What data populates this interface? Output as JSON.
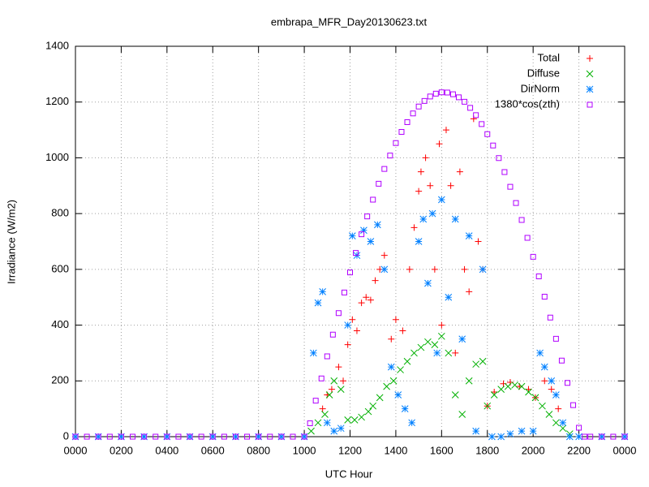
{
  "chart_data": {
    "type": "scatter",
    "title": "embrapa_MFR_Day20130623.txt",
    "xlabel": "UTC Hour",
    "ylabel": "Irradiance (W/m2)",
    "xlim": [
      0,
      24
    ],
    "ylim": [
      0,
      1400
    ],
    "xticks": [
      {
        "value": 0,
        "label": "0000"
      },
      {
        "value": 2,
        "label": "0200"
      },
      {
        "value": 4,
        "label": "0400"
      },
      {
        "value": 6,
        "label": "0600"
      },
      {
        "value": 8,
        "label": "0800"
      },
      {
        "value": 10,
        "label": "1000"
      },
      {
        "value": 12,
        "label": "1200"
      },
      {
        "value": 14,
        "label": "1400"
      },
      {
        "value": 16,
        "label": "1600"
      },
      {
        "value": 18,
        "label": "1800"
      },
      {
        "value": 20,
        "label": "2000"
      },
      {
        "value": 22,
        "label": "2200"
      },
      {
        "value": 24,
        "label": "0000"
      }
    ],
    "yticks": [
      0,
      200,
      400,
      600,
      800,
      1000,
      1200,
      1400
    ],
    "grid": true,
    "legend": "top-right",
    "series": [
      {
        "name": "Total",
        "color": "#ff0000",
        "marker": "plus",
        "x": [
          10.8,
          11.0,
          11.2,
          11.5,
          11.7,
          11.9,
          12.1,
          12.3,
          12.5,
          12.7,
          12.9,
          13.1,
          13.3,
          13.5,
          13.8,
          14.0,
          14.3,
          14.6,
          14.8,
          15.0,
          15.1,
          15.3,
          15.5,
          15.7,
          15.9,
          16.0,
          16.2,
          16.4,
          16.6,
          16.8,
          17.0,
          17.2,
          17.4,
          17.6,
          17.8,
          18.0,
          18.3,
          18.7,
          19.0,
          19.4,
          19.8,
          20.1,
          20.5,
          20.8,
          21.1
        ],
        "values": [
          100,
          150,
          170,
          250,
          200,
          330,
          420,
          380,
          480,
          500,
          490,
          560,
          600,
          650,
          350,
          420,
          380,
          600,
          750,
          880,
          950,
          1000,
          900,
          600,
          1050,
          400,
          1100,
          900,
          300,
          950,
          600,
          520,
          1140,
          700,
          600,
          110,
          160,
          190,
          195,
          180,
          170,
          140,
          200,
          170,
          100
        ]
      },
      {
        "name": "Diffuse",
        "color": "#00b000",
        "marker": "cross",
        "x": [
          10.3,
          10.6,
          10.9,
          11.1,
          11.3,
          11.6,
          11.9,
          12.2,
          12.5,
          12.8,
          13.0,
          13.3,
          13.6,
          13.9,
          14.2,
          14.5,
          14.8,
          15.1,
          15.4,
          15.7,
          16.0,
          16.3,
          16.6,
          16.9,
          17.2,
          17.5,
          17.8,
          18.0,
          18.3,
          18.6,
          18.9,
          19.2,
          19.5,
          19.8,
          20.1,
          20.4,
          20.7,
          21.0,
          21.3,
          21.6
        ],
        "values": [
          20,
          50,
          80,
          150,
          200,
          170,
          60,
          60,
          70,
          90,
          110,
          140,
          180,
          200,
          240,
          270,
          300,
          320,
          340,
          330,
          360,
          300,
          150,
          80,
          200,
          260,
          270,
          110,
          150,
          170,
          180,
          185,
          180,
          160,
          140,
          110,
          80,
          50,
          30,
          10
        ]
      },
      {
        "name": "DirNorm",
        "color": "#0080ff",
        "marker": "star",
        "x": [
          0,
          1,
          2,
          3,
          4,
          5,
          6,
          7,
          8,
          9,
          10,
          10.4,
          10.6,
          10.8,
          11.0,
          11.3,
          11.6,
          11.9,
          12.1,
          12.3,
          12.6,
          12.9,
          13.2,
          13.5,
          13.8,
          14.1,
          14.4,
          14.7,
          15.0,
          15.2,
          15.4,
          15.6,
          15.8,
          16.0,
          16.3,
          16.6,
          16.9,
          17.2,
          17.5,
          17.8,
          18.2,
          18.6,
          19.0,
          19.5,
          20.0,
          20.3,
          20.5,
          20.8,
          21.0,
          21.3,
          21.6,
          22,
          23,
          24
        ],
        "values": [
          0,
          0,
          0,
          0,
          0,
          0,
          0,
          0,
          0,
          0,
          0,
          300,
          480,
          520,
          50,
          20,
          30,
          400,
          720,
          650,
          740,
          700,
          760,
          600,
          250,
          150,
          100,
          50,
          700,
          780,
          550,
          800,
          300,
          850,
          500,
          780,
          350,
          720,
          20,
          600,
          0,
          0,
          10,
          20,
          20,
          300,
          250,
          200,
          150,
          50,
          0,
          0,
          0,
          0
        ]
      },
      {
        "name": "1380*cos(zth)",
        "color": "#b000ff",
        "marker": "square",
        "x": [
          0,
          0.5,
          1,
          1.5,
          2,
          2.5,
          3,
          3.5,
          4,
          4.5,
          5,
          5.5,
          6,
          6.5,
          7,
          7.5,
          8,
          8.5,
          9,
          9.5,
          10,
          10.25,
          10.5,
          10.75,
          11,
          11.25,
          11.5,
          11.75,
          12,
          12.25,
          12.5,
          12.75,
          13,
          13.25,
          13.5,
          13.75,
          14,
          14.25,
          14.5,
          14.75,
          15,
          15.25,
          15.5,
          15.75,
          16,
          16.25,
          16.5,
          16.75,
          17,
          17.25,
          17.5,
          17.75,
          18,
          18.25,
          18.5,
          18.75,
          19,
          19.25,
          19.5,
          19.75,
          20,
          20.25,
          20.5,
          20.75,
          21,
          21.25,
          21.5,
          21.75,
          22,
          22.25,
          22.5,
          23,
          23.5,
          24
        ],
        "values": [
          0,
          0,
          0,
          0,
          0,
          0,
          0,
          0,
          0,
          0,
          0,
          0,
          0,
          0,
          0,
          0,
          0,
          0,
          0,
          0,
          0,
          48,
          129,
          209,
          288,
          366,
          443,
          517,
          589,
          659,
          726,
          790,
          850,
          907,
          960,
          1008,
          1053,
          1093,
          1128,
          1159,
          1184,
          1204,
          1220,
          1230,
          1235,
          1234,
          1228,
          1217,
          1201,
          1179,
          1153,
          1121,
          1085,
          1044,
          999,
          949,
          896,
          838,
          777,
          713,
          645,
          575,
          502,
          427,
          351,
          273,
          193,
          113,
          32,
          0,
          0,
          0,
          0,
          0
        ]
      }
    ]
  }
}
